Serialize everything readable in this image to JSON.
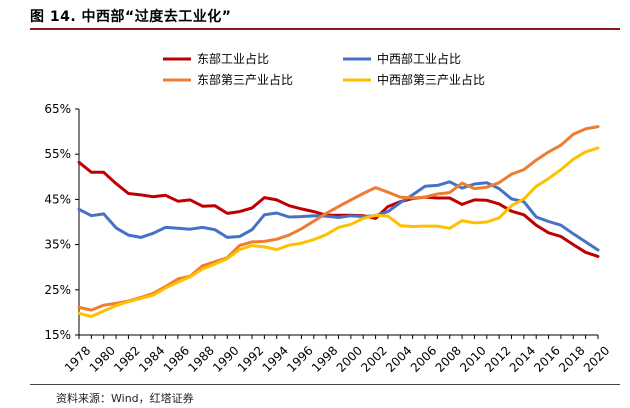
{
  "figure": {
    "title": "图 14.  中西部“过度去工业化”",
    "source": "资料来源：Wind，红塔证券"
  },
  "chart_data": {
    "type": "line",
    "title": "",
    "xlabel": "",
    "ylabel": "",
    "ylim": [
      15,
      65
    ],
    "yticks": [
      "15%",
      "25%",
      "35%",
      "45%",
      "55%",
      "65%"
    ],
    "ytick_values": [
      15,
      25,
      35,
      45,
      55,
      65
    ],
    "x": [
      1978,
      1979,
      1980,
      1981,
      1982,
      1983,
      1984,
      1985,
      1986,
      1987,
      1988,
      1989,
      1990,
      1991,
      1992,
      1993,
      1994,
      1995,
      1996,
      1997,
      1998,
      1999,
      2000,
      2001,
      2002,
      2003,
      2004,
      2005,
      2006,
      2007,
      2008,
      2009,
      2010,
      2011,
      2012,
      2013,
      2014,
      2015,
      2016,
      2017,
      2018,
      2019,
      2020
    ],
    "xtick_labels": [
      "1978",
      "1980",
      "1982",
      "1984",
      "1986",
      "1988",
      "1990",
      "1992",
      "1994",
      "1996",
      "1998",
      "2000",
      "2002",
      "2004",
      "2006",
      "2008",
      "2010",
      "2012",
      "2014",
      "2016",
      "2018",
      "2020"
    ],
    "legend_position": "top",
    "series": [
      {
        "name": "东部工业占比",
        "color": "#c00000",
        "values": [
          53.2,
          51.0,
          51.0,
          48.5,
          46.3,
          46.0,
          45.6,
          45.9,
          44.6,
          44.9,
          43.5,
          43.6,
          41.9,
          42.3,
          43.1,
          45.4,
          44.9,
          43.6,
          42.9,
          42.3,
          41.5,
          41.5,
          41.5,
          41.4,
          40.8,
          43.4,
          44.5,
          45.2,
          45.5,
          45.3,
          45.3,
          43.9,
          44.9,
          44.8,
          44.0,
          42.4,
          41.6,
          39.3,
          37.6,
          36.8,
          35.0,
          33.3,
          32.4
        ]
      },
      {
        "name": "中西部工业占比",
        "color": "#4472c4",
        "values": [
          42.8,
          41.4,
          41.8,
          38.7,
          37.1,
          36.6,
          37.5,
          38.8,
          38.6,
          38.4,
          38.8,
          38.3,
          36.6,
          36.8,
          38.3,
          41.6,
          42.0,
          41.1,
          41.2,
          41.4,
          41.3,
          41.0,
          41.4,
          41.2,
          41.4,
          42.3,
          44.3,
          46.0,
          47.9,
          48.1,
          48.9,
          47.5,
          48.4,
          48.7,
          47.4,
          45.1,
          44.5,
          41.1,
          40.1,
          39.3,
          37.4,
          35.6,
          33.8
        ]
      },
      {
        "name": "东部第三产业占比",
        "color": "#ed7d31",
        "values": [
          21.1,
          20.5,
          21.6,
          22.0,
          22.5,
          23.3,
          24.2,
          25.7,
          27.4,
          28.0,
          30.3,
          31.2,
          32.1,
          34.8,
          35.6,
          35.7,
          36.2,
          37.1,
          38.5,
          40.2,
          41.9,
          43.4,
          44.9,
          46.3,
          47.6,
          46.6,
          45.5,
          45.3,
          45.5,
          46.2,
          46.5,
          48.6,
          47.4,
          47.7,
          48.7,
          50.6,
          51.6,
          53.7,
          55.5,
          57.0,
          59.4,
          60.6,
          61.1
        ]
      },
      {
        "name": "中西部第三产业占比",
        "color": "#ffc000",
        "values": [
          19.8,
          19.1,
          20.3,
          21.5,
          22.4,
          23.1,
          23.8,
          25.4,
          26.7,
          27.9,
          29.6,
          30.7,
          31.9,
          33.9,
          34.8,
          34.5,
          33.9,
          34.9,
          35.3,
          36.1,
          37.2,
          38.8,
          39.5,
          40.8,
          41.5,
          41.3,
          39.2,
          39.0,
          39.1,
          39.1,
          38.6,
          40.3,
          39.8,
          40.0,
          40.9,
          43.6,
          45.1,
          47.9,
          49.6,
          51.6,
          53.9,
          55.5,
          56.4
        ]
      }
    ]
  }
}
